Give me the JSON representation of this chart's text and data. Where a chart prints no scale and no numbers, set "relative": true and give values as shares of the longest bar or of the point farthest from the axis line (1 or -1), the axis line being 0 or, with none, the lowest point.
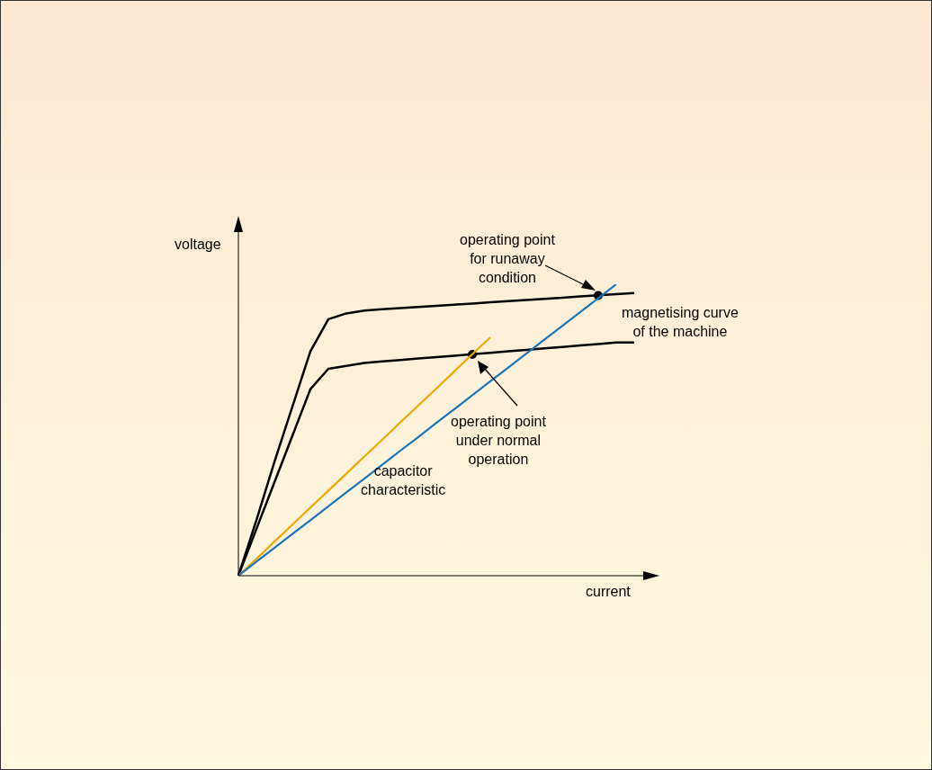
{
  "chart_data": {
    "type": "line",
    "relative": true,
    "xlabel": "current",
    "ylabel": "voltage",
    "legend": false,
    "grid": false,
    "marker": "none",
    "categories": [
      null,
      null,
      null,
      null,
      null,
      null,
      null,
      null,
      null,
      null,
      null,
      null,
      null,
      null,
      null,
      null,
      null,
      null,
      null,
      null,
      null,
      null,
      null
    ],
    "series": [
      {
        "color": "#000000",
        "values": [
          0,
          0.19,
          0.39,
          0.58,
          0.77,
          0.88,
          0.9,
          0.91,
          0.914,
          0.918,
          0.922,
          0.926,
          0.93,
          0.934,
          0.938,
          0.942,
          0.946,
          0.95,
          0.954,
          0.958,
          0.962,
          0.966,
          0.97
        ]
      },
      {
        "color": "#000000",
        "values": [
          0,
          0.16,
          0.32,
          0.48,
          0.64,
          0.71,
          0.72,
          0.73,
          0.735,
          0.74,
          0.745,
          0.75,
          0.755,
          0.76,
          0.765,
          0.77,
          0.775,
          0.78,
          0.785,
          0.79,
          0.795,
          0.8,
          0.8
        ]
      },
      {
        "color": "#f0a800",
        "values": [
          0,
          0.058,
          0.117,
          0.175,
          0.234,
          0.292,
          0.35,
          0.409,
          0.467,
          0.526,
          0.584,
          0.642,
          0.701,
          0.76,
          0.818,
          null,
          null,
          null,
          null,
          null,
          null,
          null,
          null
        ]
      },
      {
        "color": "#1a75bb",
        "values": [
          0,
          0.048,
          0.095,
          0.143,
          0.19,
          0.238,
          0.286,
          0.333,
          0.381,
          0.429,
          0.476,
          0.524,
          0.571,
          0.619,
          0.667,
          0.714,
          0.762,
          0.81,
          0.857,
          0.905,
          0.952,
          1,
          null
        ]
      }
    ],
    "annotations": [
      "operating point\nfor runaway\ncondition",
      "magnetising curve\nof the machine",
      "operating point\nunder normal\noperation",
      "capacitor\ncharacteristic"
    ]
  }
}
